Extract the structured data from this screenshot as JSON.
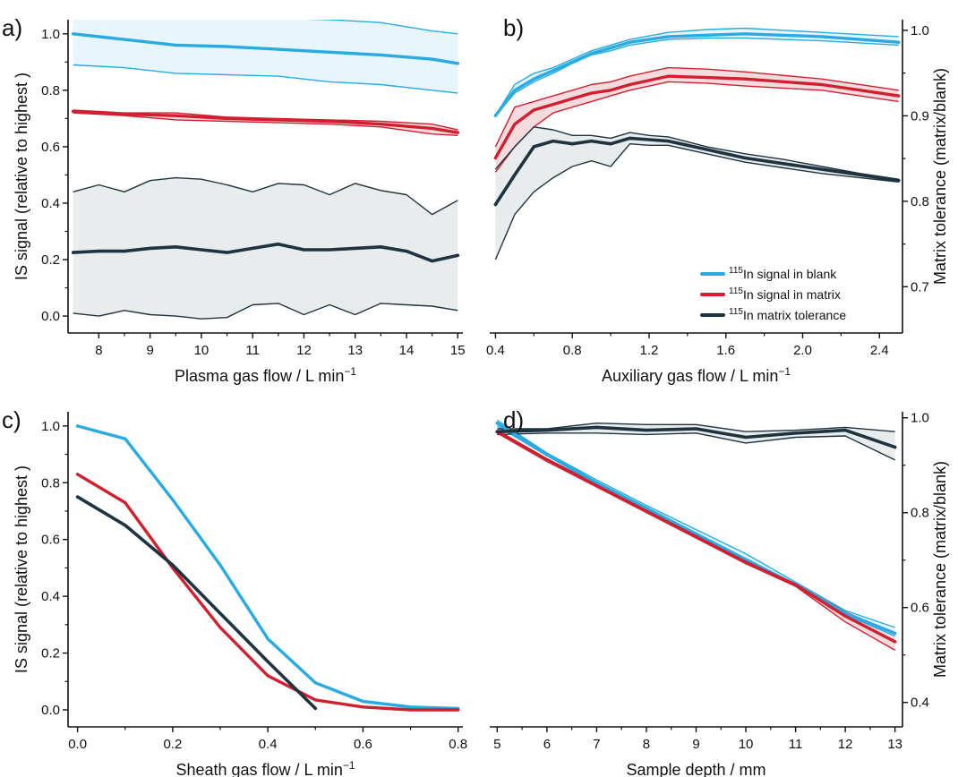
{
  "colors": {
    "blank": "#29abe2",
    "matrix": "#d0202f",
    "tolerance": "#1d3340",
    "band_blank": "#e3f4fc",
    "band_matrix": "#f4d5d8",
    "band_tolerance": "#e5e9ea"
  },
  "legend": {
    "blank": {
      "sup": "115",
      "text": "In signal in blank"
    },
    "matrix": {
      "sup": "115",
      "text": "In signal in matrix"
    },
    "tolerance": {
      "sup": "115",
      "text": "In matrix tolerance"
    }
  },
  "chart_data": [
    {
      "panel": "a)",
      "type": "line",
      "xlabel": "Plasma gas flow / L min",
      "xlabel_sup": "−1",
      "ylabel": "IS signal (relative to highest )",
      "xlim": [
        7.4,
        15.1
      ],
      "ylim": [
        -0.06,
        1.05
      ],
      "xticks": [
        8,
        9,
        10,
        11,
        12,
        13,
        14,
        15
      ],
      "xtick_labels": [
        "8",
        "9",
        "10",
        "11",
        "12",
        "13",
        "14",
        "15"
      ],
      "yticks": [
        0,
        0.2,
        0.4,
        0.6,
        0.8,
        1.0
      ],
      "ytick_labels": [
        "0.0",
        "0.2",
        "0.4",
        "0.6",
        "0.8",
        "1.0"
      ],
      "series": [
        {
          "key": "blank",
          "x": [
            7.5,
            8.5,
            9.5,
            10.5,
            11.5,
            12.5,
            13.5,
            14.5,
            15
          ],
          "y": [
            1.0,
            0.98,
            0.96,
            0.955,
            0.945,
            0.935,
            0.925,
            0.91,
            0.895
          ],
          "upper": [
            1.07,
            1.07,
            1.06,
            1.06,
            1.055,
            1.05,
            1.04,
            1.01,
            1.0
          ],
          "lower": [
            0.89,
            0.88,
            0.86,
            0.855,
            0.85,
            0.83,
            0.82,
            0.8,
            0.79
          ]
        },
        {
          "key": "matrix",
          "x": [
            7.5,
            8.5,
            9.5,
            10.5,
            11.5,
            12.5,
            13.5,
            14.5,
            15
          ],
          "y": [
            0.725,
            0.715,
            0.71,
            0.7,
            0.695,
            0.69,
            0.68,
            0.665,
            0.65
          ],
          "upper": [
            0.73,
            0.72,
            0.72,
            0.705,
            0.7,
            0.695,
            0.69,
            0.68,
            0.66
          ],
          "lower": [
            0.72,
            0.71,
            0.695,
            0.69,
            0.685,
            0.68,
            0.67,
            0.645,
            0.64
          ]
        },
        {
          "key": "tolerance",
          "x": [
            7.5,
            8,
            8.5,
            9,
            9.5,
            10,
            10.5,
            11,
            11.5,
            12,
            12.5,
            13,
            13.5,
            14,
            14.5,
            15
          ],
          "y": [
            0.225,
            0.23,
            0.23,
            0.24,
            0.245,
            0.235,
            0.225,
            0.24,
            0.255,
            0.235,
            0.235,
            0.24,
            0.245,
            0.23,
            0.195,
            0.215
          ],
          "upper": [
            0.44,
            0.465,
            0.44,
            0.48,
            0.49,
            0.485,
            0.465,
            0.44,
            0.47,
            0.465,
            0.43,
            0.47,
            0.445,
            0.43,
            0.36,
            0.41
          ],
          "lower": [
            0.01,
            0.0,
            0.02,
            0.005,
            0.0,
            -0.01,
            -0.005,
            0.04,
            0.045,
            0.005,
            0.04,
            0.005,
            0.045,
            0.04,
            0.035,
            0.02
          ]
        }
      ]
    },
    {
      "panel": "b)",
      "type": "line",
      "xlabel": "Auxiliary gas flow / L min",
      "xlabel_sup": "−1",
      "y2label": "Matrix tolerance (matrix/blank)",
      "xlim": [
        0.37,
        2.52
      ],
      "ylim": [
        -0.06,
        1.05
      ],
      "xticks": [
        0.4,
        0.8,
        1.2,
        1.6,
        2.0,
        2.4
      ],
      "xtick_labels": [
        "0.4",
        "0.8",
        "1.2",
        "1.6",
        "2.0",
        "2.4"
      ],
      "y2lim": [
        0.6458,
        1.0125
      ],
      "y2ticks": [
        0.7,
        0.8,
        0.9,
        1.0
      ],
      "y2tick_labels": [
        "0.7",
        "0.8",
        "0.9",
        "1.0"
      ],
      "series": [
        {
          "key": "blank",
          "x": [
            0.4,
            0.5,
            0.6,
            0.7,
            0.8,
            0.9,
            1.0,
            1.1,
            1.3,
            1.5,
            1.7,
            2.1,
            2.5
          ],
          "y": [
            0.71,
            0.8,
            0.84,
            0.87,
            0.9,
            0.93,
            0.95,
            0.97,
            0.99,
            0.995,
            1.0,
            0.99,
            0.97
          ],
          "upper": [
            0.71,
            0.82,
            0.86,
            0.88,
            0.91,
            0.94,
            0.96,
            0.98,
            1.005,
            1.015,
            1.02,
            1.005,
            0.99
          ],
          "lower": [
            0.71,
            0.79,
            0.83,
            0.86,
            0.895,
            0.925,
            0.94,
            0.96,
            0.98,
            0.985,
            0.985,
            0.975,
            0.96
          ]
        },
        {
          "key": "matrix",
          "x": [
            0.4,
            0.5,
            0.6,
            0.7,
            0.8,
            0.9,
            1.0,
            1.1,
            1.3,
            1.5,
            1.7,
            2.1,
            2.5
          ],
          "y": [
            0.56,
            0.68,
            0.73,
            0.75,
            0.77,
            0.79,
            0.8,
            0.82,
            0.85,
            0.845,
            0.84,
            0.82,
            0.78
          ],
          "upper": [
            0.6,
            0.74,
            0.76,
            0.78,
            0.8,
            0.82,
            0.83,
            0.85,
            0.88,
            0.875,
            0.865,
            0.84,
            0.8
          ],
          "lower": [
            0.51,
            0.6,
            0.67,
            0.72,
            0.74,
            0.76,
            0.78,
            0.8,
            0.83,
            0.825,
            0.815,
            0.8,
            0.76
          ]
        },
        {
          "key": "tolerance",
          "x": [
            0.4,
            0.5,
            0.6,
            0.7,
            0.8,
            0.9,
            1.0,
            1.1,
            1.2,
            1.3,
            1.5,
            1.7,
            1.9,
            2.1,
            2.3,
            2.5
          ],
          "y": [
            0.395,
            0.5,
            0.6,
            0.62,
            0.61,
            0.62,
            0.61,
            0.63,
            0.625,
            0.62,
            0.59,
            0.56,
            0.54,
            0.52,
            0.5,
            0.48
          ],
          "upper": [
            0.52,
            0.6,
            0.67,
            0.66,
            0.64,
            0.64,
            0.63,
            0.65,
            0.64,
            0.635,
            0.6,
            0.575,
            0.555,
            0.53,
            0.505,
            0.485
          ],
          "lower": [
            0.2,
            0.36,
            0.44,
            0.49,
            0.53,
            0.55,
            0.53,
            0.61,
            0.605,
            0.605,
            0.575,
            0.545,
            0.525,
            0.505,
            0.49,
            0.475
          ]
        }
      ]
    },
    {
      "panel": "c)",
      "type": "line",
      "xlabel": "Sheath gas flow / L min",
      "xlabel_sup": "−1",
      "ylabel": "IS signal (relative to highest )",
      "xlim": [
        -0.02,
        0.81
      ],
      "ylim": [
        -0.06,
        1.05
      ],
      "xticks": [
        0,
        0.2,
        0.4,
        0.6,
        0.8
      ],
      "xtick_labels": [
        "0.0",
        "0.2",
        "0.4",
        "0.6",
        "0.8"
      ],
      "yticks": [
        0,
        0.2,
        0.4,
        0.6,
        0.8,
        1.0
      ],
      "ytick_labels": [
        "0.0",
        "0.2",
        "0.4",
        "0.6",
        "0.8",
        "1.0"
      ],
      "series": [
        {
          "key": "blank",
          "x": [
            0,
            0.1,
            0.2,
            0.3,
            0.4,
            0.5,
            0.6,
            0.7,
            0.8
          ],
          "y": [
            1.0,
            0.955,
            0.74,
            0.51,
            0.25,
            0.095,
            0.03,
            0.01,
            0.005
          ]
        },
        {
          "key": "matrix",
          "x": [
            0,
            0.1,
            0.2,
            0.3,
            0.4,
            0.5,
            0.6,
            0.7,
            0.8
          ],
          "y": [
            0.83,
            0.73,
            0.5,
            0.29,
            0.12,
            0.035,
            0.01,
            0.0,
            0.0
          ]
        },
        {
          "key": "tolerance",
          "x": [
            0,
            0.1,
            0.2,
            0.3,
            0.4,
            0.5
          ],
          "y": [
            0.75,
            0.65,
            0.51,
            0.34,
            0.17,
            0.005
          ]
        }
      ]
    },
    {
      "panel": "d)",
      "type": "line",
      "xlabel": "Sample depth / mm",
      "y2label": "Matrix tolerance (matrix/blank)",
      "xlim": [
        4.85,
        13.15
      ],
      "ylim": [
        -0.06,
        1.05
      ],
      "xticks": [
        5,
        6,
        7,
        8,
        9,
        10,
        11,
        12,
        13
      ],
      "xtick_labels": [
        "5",
        "6",
        "7",
        "8",
        "9",
        "10",
        "11",
        "12",
        "13"
      ],
      "y2lim": [
        0.3485,
        1.0127
      ],
      "y2ticks": [
        0.4,
        0.6,
        0.8,
        1.0
      ],
      "y2tick_labels": [
        "0.4",
        "0.6",
        "0.8",
        "1.0"
      ],
      "series": [
        {
          "key": "blank",
          "x": [
            5,
            6,
            7,
            8,
            9,
            10,
            11,
            12,
            13
          ],
          "y": [
            1.01,
            0.9,
            0.8,
            0.71,
            0.62,
            0.53,
            0.44,
            0.34,
            0.27
          ],
          "upper": [
            1.02,
            0.905,
            0.81,
            0.72,
            0.635,
            0.55,
            0.45,
            0.35,
            0.29
          ],
          "lower": [
            1.0,
            0.895,
            0.795,
            0.7,
            0.61,
            0.52,
            0.435,
            0.335,
            0.26
          ]
        },
        {
          "key": "matrix",
          "x": [
            5,
            6,
            7,
            8,
            9,
            10,
            11,
            12,
            13
          ],
          "y": [
            0.98,
            0.88,
            0.79,
            0.7,
            0.61,
            0.52,
            0.44,
            0.33,
            0.24
          ],
          "upper": [
            0.985,
            0.885,
            0.795,
            0.705,
            0.62,
            0.53,
            0.445,
            0.345,
            0.27
          ],
          "lower": [
            0.975,
            0.875,
            0.785,
            0.695,
            0.605,
            0.515,
            0.435,
            0.31,
            0.21
          ]
        },
        {
          "key": "tolerance",
          "x": [
            5,
            6,
            7,
            8,
            9,
            10,
            11,
            12,
            13
          ],
          "y": [
            0.98,
            0.985,
            0.995,
            0.985,
            0.99,
            0.96,
            0.975,
            0.985,
            0.925
          ],
          "upper": [
            0.99,
            0.99,
            1.01,
            1.005,
            1.005,
            0.98,
            0.985,
            0.995,
            0.98
          ],
          "lower": [
            0.97,
            0.975,
            0.975,
            0.97,
            0.975,
            0.94,
            0.96,
            0.965,
            0.88
          ]
        }
      ]
    }
  ]
}
